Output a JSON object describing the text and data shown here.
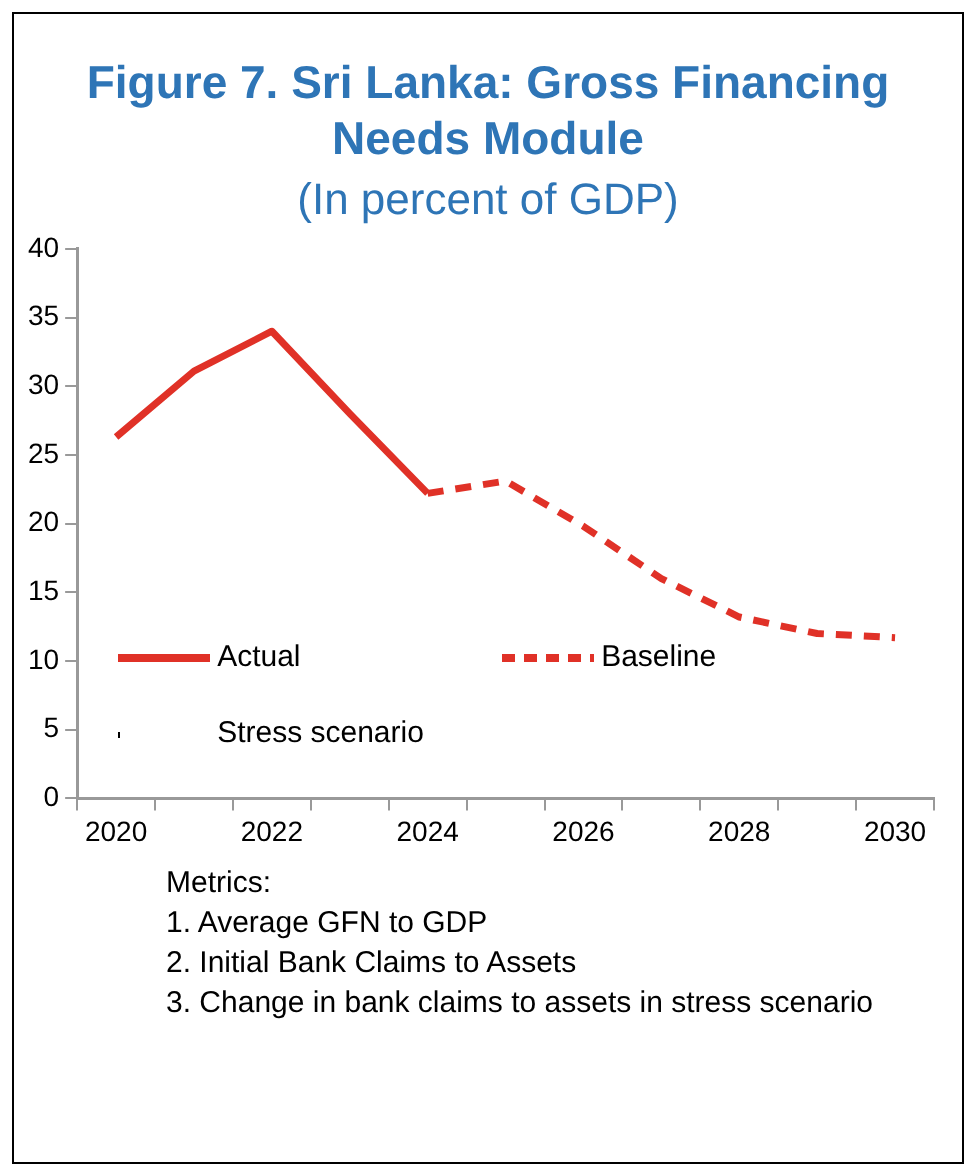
{
  "chart_data": {
    "type": "line",
    "title": "Figure 7. Sri Lanka: Gross Financing Needs Module",
    "subtitle": "(In percent of GDP)",
    "categories": [
      "2020",
      null,
      "2022",
      null,
      "2024",
      null,
      "2026",
      null,
      "2028",
      null,
      "2030"
    ],
    "series": [
      {
        "name": "Actual",
        "color": "#e03127",
        "line_style": "solid",
        "values": [
          26.3,
          31.1,
          34.0,
          28.0,
          22.2,
          null,
          null,
          null,
          null,
          null,
          null
        ]
      },
      {
        "name": "Baseline",
        "color": "#e03127",
        "line_style": "dashed",
        "values": [
          null,
          null,
          null,
          null,
          22.2,
          23.1,
          19.8,
          16.0,
          13.2,
          12.0,
          11.7
        ]
      },
      {
        "name": "Stress scenario",
        "color": "#000000",
        "line_style": "dotted",
        "values": [
          null,
          null,
          null,
          null,
          null,
          null,
          null,
          null,
          null,
          null,
          null
        ]
      }
    ],
    "ylim": [
      0,
      40
    ],
    "yticks": [
      0,
      5,
      10,
      15,
      20,
      25,
      30,
      35,
      40
    ],
    "grid": false,
    "legend": "bottom",
    "marker": "none",
    "annotations": [
      "Metrics:",
      "1.  Average GFN to GDP",
      "2.  Initial Bank Claims to Assets",
      "3.  Change in bank claims to assets in stress scenario"
    ]
  }
}
